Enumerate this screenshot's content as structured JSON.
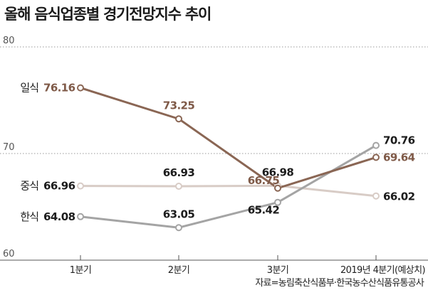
{
  "title": "올해 음식업종별 경기전망지수 추이",
  "source": "자료=농림축산식품부·한국농수산식품유통공사",
  "colors": {
    "grid": "#9a9a9a",
    "axis": "#555555"
  },
  "chart_data": {
    "type": "line",
    "categories": [
      "1분기",
      "2분기",
      "3분기",
      "2019년 4분기(예상치)"
    ],
    "ylim": [
      60,
      80
    ],
    "yticks": [
      60,
      70,
      80
    ],
    "grid": true,
    "legend": "inline-left",
    "series": [
      {
        "name": "일식",
        "values": [
          76.16,
          73.25,
          66.75,
          69.64
        ],
        "color": "#8a6654",
        "labels": [
          "76.16",
          "73.25",
          "66.75",
          "69.64"
        ]
      },
      {
        "name": "중식",
        "values": [
          66.96,
          66.93,
          66.98,
          66.02
        ],
        "color": "#d8ccc6",
        "labels": [
          "66.96",
          "66.93",
          "66.98",
          "66.02"
        ]
      },
      {
        "name": "한식",
        "values": [
          64.08,
          63.05,
          65.42,
          70.76
        ],
        "color": "#a4a4a4",
        "labels": [
          "64.08",
          "63.05",
          "65.42",
          "70.76"
        ]
      }
    ]
  }
}
